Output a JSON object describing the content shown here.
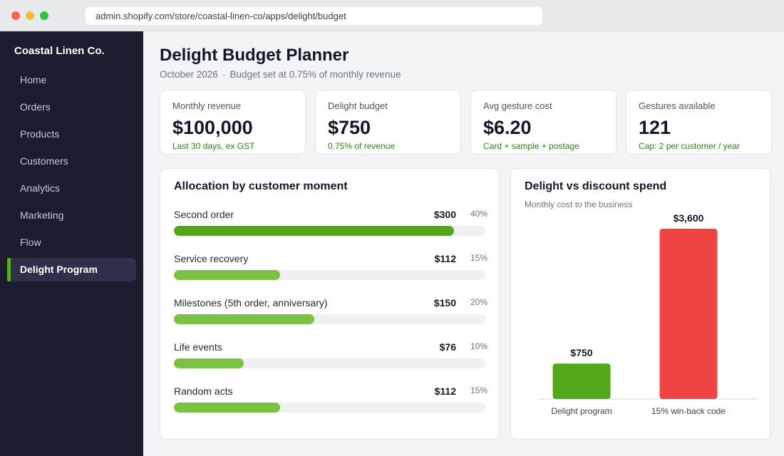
{
  "browser": {
    "url": "admin.shopify.com/store/coastal-linen-co/apps/delight/budget"
  },
  "sidebar": {
    "store_name": "Coastal Linen Co.",
    "items": [
      {
        "label": "Home"
      },
      {
        "label": "Orders"
      },
      {
        "label": "Products"
      },
      {
        "label": "Customers"
      },
      {
        "label": "Analytics"
      },
      {
        "label": "Marketing"
      },
      {
        "label": "Flow"
      },
      {
        "label": "Delight Program",
        "active": true
      }
    ]
  },
  "page": {
    "title": "Delight Budget Planner",
    "period": "October 2026",
    "separator": "·",
    "subtitle": "Budget set at 0.75% of monthly revenue"
  },
  "kpis": [
    {
      "label": "Monthly revenue",
      "value": "$100,000",
      "note": "Last 30 days, ex GST"
    },
    {
      "label": "Delight budget",
      "value": "$750",
      "note": "0.75% of revenue"
    },
    {
      "label": "Avg gesture cost",
      "value": "$6.20",
      "note": "Card + sample + postage"
    },
    {
      "label": "Gestures available",
      "value": "121",
      "note": "Cap: 2 per customer / year"
    }
  ],
  "allocation": {
    "title": "Allocation by customer moment",
    "rows": [
      {
        "name": "Second order",
        "amount": "$300",
        "pct": "40%",
        "fill": 0.9,
        "color": "#52a818"
      },
      {
        "name": "Service recovery",
        "amount": "$112",
        "pct": "15%",
        "fill": 0.34,
        "color": "#7bc143"
      },
      {
        "name": "Milestones (5th order, anniversary)",
        "amount": "$150",
        "pct": "20%",
        "fill": 0.45,
        "color": "#7bc143"
      },
      {
        "name": "Life events",
        "amount": "$76",
        "pct": "10%",
        "fill": 0.225,
        "color": "#7bc143"
      },
      {
        "name": "Random acts",
        "amount": "$112",
        "pct": "15%",
        "fill": 0.34,
        "color": "#7bc143"
      }
    ]
  },
  "comparison": {
    "title": "Delight vs discount spend",
    "subtitle": "Monthly cost to the business"
  },
  "chart_data": {
    "type": "bar",
    "title": "Delight vs discount spend",
    "subtitle": "Monthly cost to the business",
    "categories": [
      "Delight program",
      "15% win-back code"
    ],
    "values": [
      750,
      3600
    ],
    "value_labels": [
      "$750",
      "$3,600"
    ],
    "colors": [
      "#52a818",
      "#ef4444"
    ],
    "ylim": [
      0,
      3600
    ],
    "grid": false,
    "xlabel": "",
    "ylabel": ""
  }
}
